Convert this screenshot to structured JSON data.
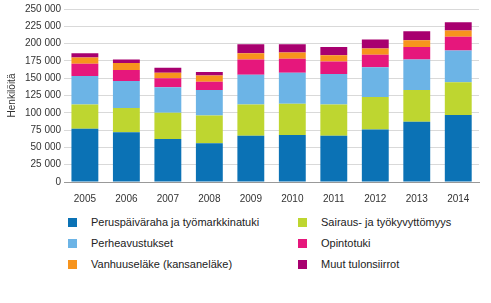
{
  "chart_data": {
    "type": "bar",
    "stacked": true,
    "grid": true,
    "legend": "bottom",
    "y_label": "Henkilöitä",
    "categories": [
      "2005",
      "2006",
      "2007",
      "2008",
      "2009",
      "2010",
      "2011",
      "2012",
      "2013",
      "2014"
    ],
    "series": [
      {
        "name": "Peruspäiväraha ja työmarkkinatuki",
        "color": "#0b72b5",
        "values": [
          77000,
          72000,
          62000,
          56000,
          67000,
          68000,
          67000,
          76000,
          87000,
          97000
        ]
      },
      {
        "name": "Sairaus- ja työkyvyttömyys",
        "color": "#bed630",
        "values": [
          35000,
          35000,
          38000,
          40000,
          45000,
          45000,
          45000,
          47000,
          46000,
          47000
        ]
      },
      {
        "name": "Perheavustukset",
        "color": "#6cb4e6",
        "values": [
          41000,
          39000,
          37000,
          37000,
          43000,
          45000,
          44000,
          43000,
          44000,
          46000
        ]
      },
      {
        "name": "Opintotuki",
        "color": "#e6177c",
        "values": [
          18000,
          16000,
          13000,
          12000,
          22000,
          20000,
          18000,
          18000,
          18000,
          20000
        ]
      },
      {
        "name": "Vanhuuseläke (kansaneläke)",
        "color": "#f7941d",
        "values": [
          9000,
          10000,
          8000,
          9000,
          9000,
          9000,
          9000,
          9000,
          10000,
          9000
        ]
      },
      {
        "name": "Muut tulonsiirrot",
        "color": "#a8006f",
        "values": [
          6000,
          5000,
          7000,
          5000,
          13000,
          12000,
          12000,
          13000,
          13000,
          12000
        ]
      }
    ],
    "ylim": [
      0,
      250000
    ],
    "yticks": [
      0,
      {
        "value": 25000,
        "label": "25 000"
      },
      {
        "value": 50000,
        "label": "50 000"
      },
      {
        "value": 75000,
        "label": "75 000"
      },
      {
        "value": 100000,
        "label": "100 000"
      },
      {
        "value": 125000,
        "label": "125 000"
      },
      {
        "value": 150000,
        "label": "150 000"
      },
      {
        "value": 175000,
        "label": "175 000"
      },
      {
        "value": 200000,
        "label": "200 000"
      },
      {
        "value": 225000,
        "label": "225 000"
      },
      {
        "value": 250000,
        "label": "250 000"
      }
    ]
  }
}
